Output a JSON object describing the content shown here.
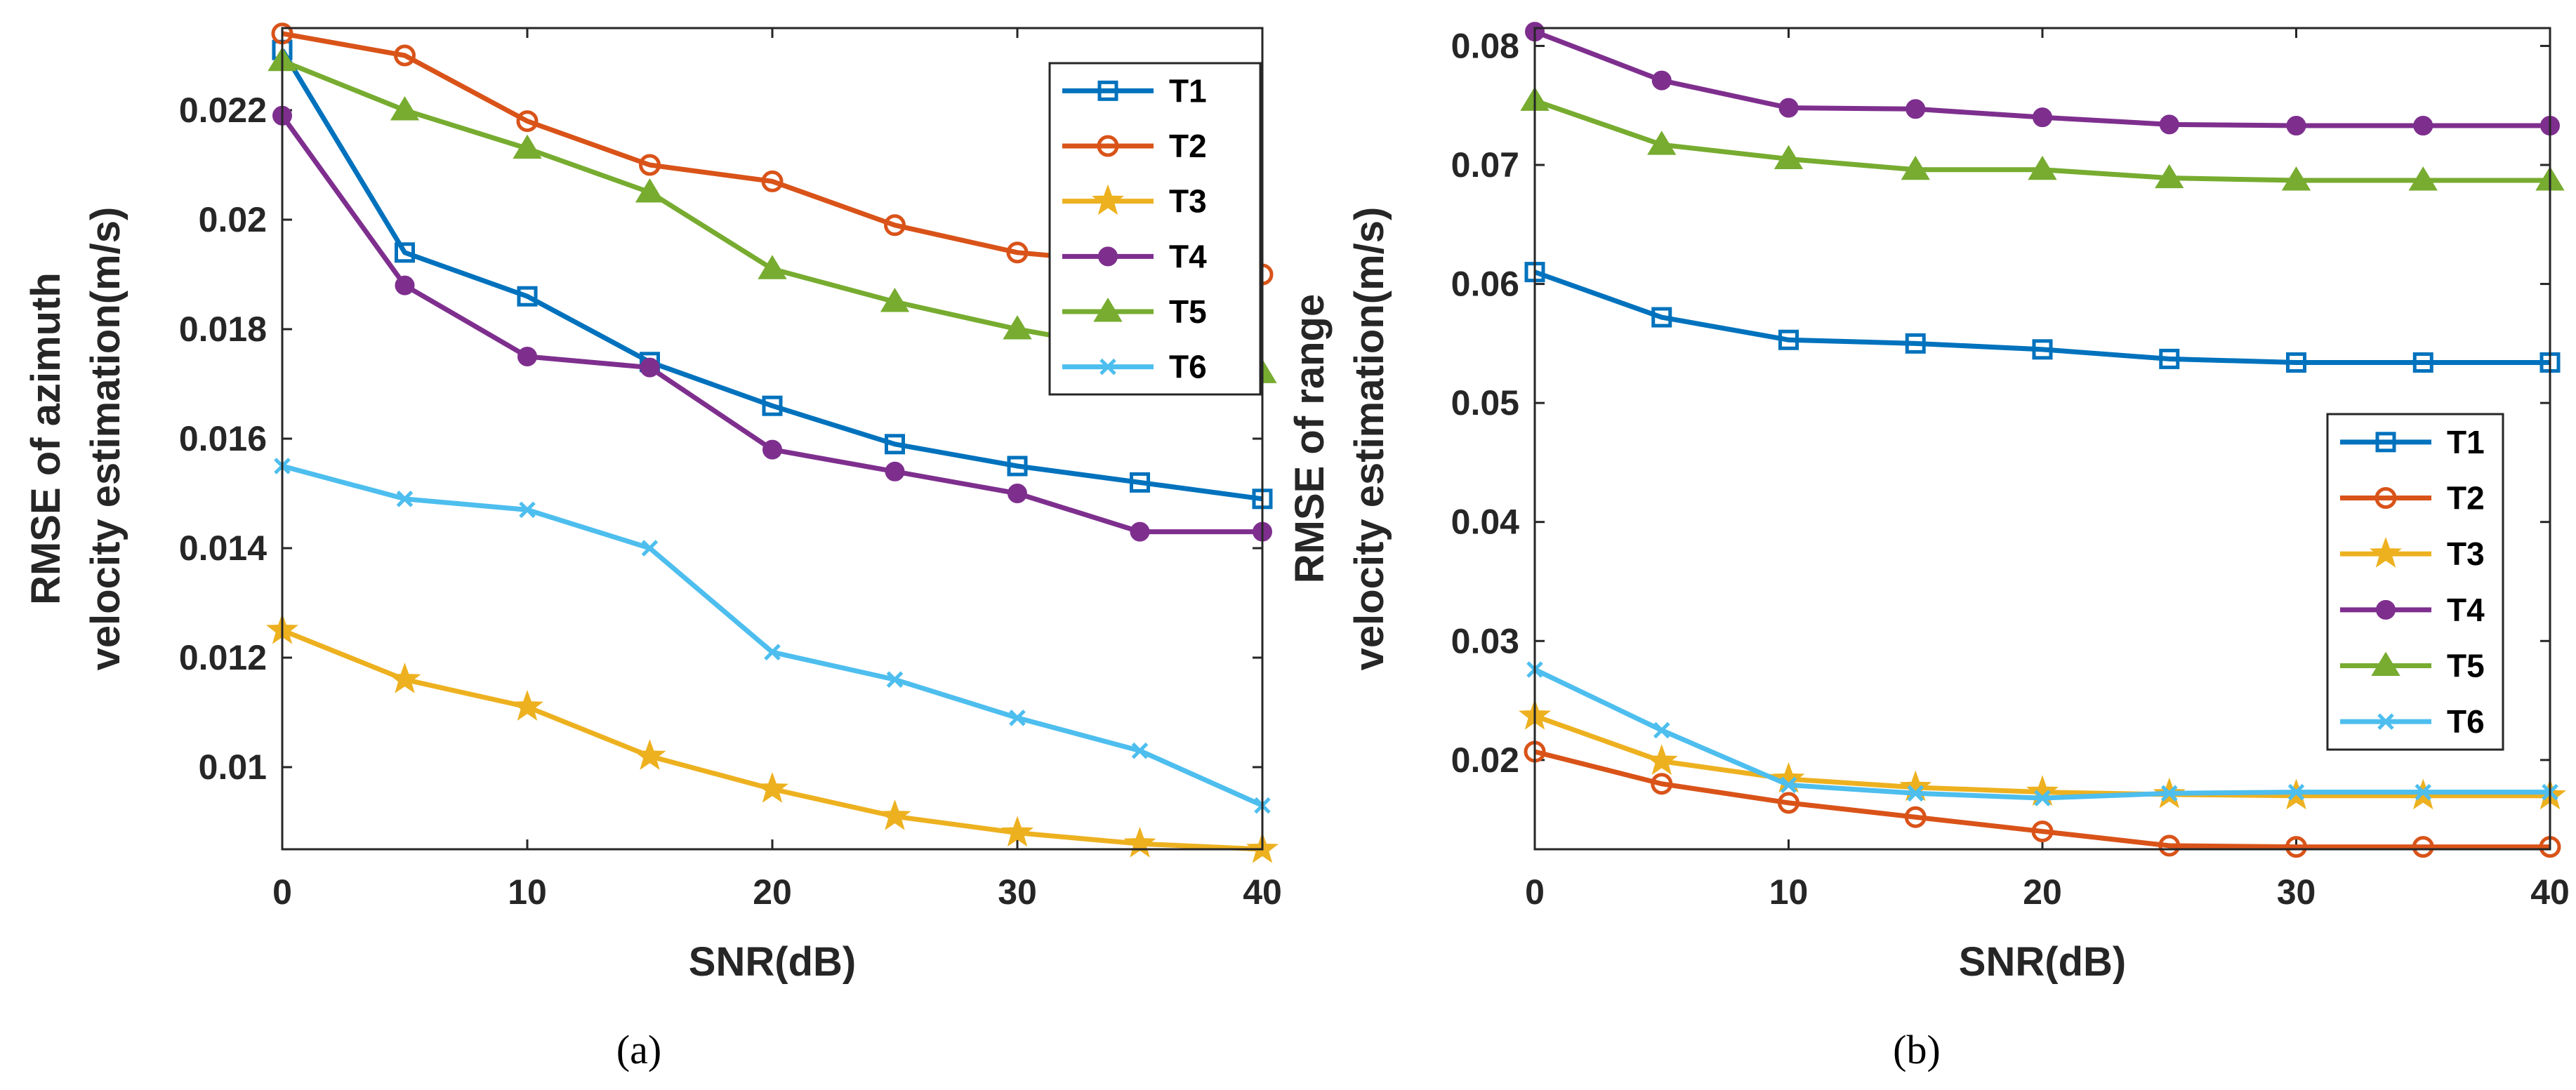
{
  "chart_data": [
    {
      "type": "line",
      "caption": "(a)",
      "xlabel": "SNR(dB)",
      "ylabel": [
        "RMSE of azimuth",
        "velocity estimation(m/s)"
      ],
      "xlim": [
        0,
        40
      ],
      "ylim": [
        0.0085,
        0.0235
      ],
      "xticks": [
        0,
        10,
        20,
        30,
        40
      ],
      "xtick_labels": [
        "0",
        "10",
        "20",
        "30",
        "40"
      ],
      "yticks": [
        0.01,
        0.012,
        0.014,
        0.016,
        0.018,
        0.02,
        0.022
      ],
      "ytick_labels": [
        "0.01",
        "0.012",
        "0.014",
        "0.016",
        "0.018",
        "0.02",
        "0.022"
      ],
      "legend_position": "top-right",
      "x": [
        0,
        5,
        10,
        15,
        20,
        25,
        30,
        35,
        40
      ],
      "series": [
        {
          "name": "T1",
          "color": "#0072BD",
          "marker": "square",
          "values": [
            0.0231,
            0.0194,
            0.0186,
            0.0174,
            0.0166,
            0.0159,
            0.0155,
            0.0152,
            0.0149
          ]
        },
        {
          "name": "T2",
          "color": "#D95319",
          "marker": "circle",
          "values": [
            0.0234,
            0.023,
            0.0218,
            0.021,
            0.0207,
            0.0199,
            0.0194,
            0.0192,
            0.019
          ]
        },
        {
          "name": "T3",
          "color": "#EDB120",
          "marker": "star",
          "values": [
            0.0125,
            0.0116,
            0.0111,
            0.0102,
            0.0096,
            0.0091,
            0.0088,
            0.0086,
            0.0085
          ]
        },
        {
          "name": "T4",
          "color": "#7E2F8E",
          "marker": "dot",
          "values": [
            0.0219,
            0.0188,
            0.0175,
            0.0173,
            0.0158,
            0.0154,
            0.015,
            0.0143,
            0.0143
          ]
        },
        {
          "name": "T5",
          "color": "#77AC30",
          "marker": "triangle",
          "values": [
            0.0229,
            0.022,
            0.0213,
            0.0205,
            0.0191,
            0.0185,
            0.018,
            0.0176,
            0.0172
          ]
        },
        {
          "name": "T6",
          "color": "#4DBEEE",
          "marker": "x",
          "values": [
            0.0155,
            0.0149,
            0.0147,
            0.014,
            0.0121,
            0.0116,
            0.0109,
            0.0103,
            0.0093
          ]
        }
      ]
    },
    {
      "type": "line",
      "caption": "(b)",
      "xlabel": "SNR(dB)",
      "ylabel": [
        "RMSE of range",
        "velocity estimation(m/s)"
      ],
      "xlim": [
        0,
        40
      ],
      "ylim": [
        0.0125,
        0.0815
      ],
      "xticks": [
        0,
        10,
        20,
        30,
        40
      ],
      "xtick_labels": [
        "0",
        "10",
        "20",
        "30",
        "40"
      ],
      "yticks": [
        0.02,
        0.03,
        0.04,
        0.05,
        0.06,
        0.07,
        0.08
      ],
      "ytick_labels": [
        "0.02",
        "0.03",
        "0.04",
        "0.05",
        "0.06",
        "0.07",
        "0.08"
      ],
      "legend_position": "right",
      "x": [
        0,
        5,
        10,
        15,
        20,
        25,
        30,
        35,
        40
      ],
      "series": [
        {
          "name": "T1",
          "color": "#0072BD",
          "marker": "square",
          "values": [
            0.061,
            0.0572,
            0.0553,
            0.055,
            0.0545,
            0.0537,
            0.0534,
            0.0534,
            0.0534
          ]
        },
        {
          "name": "T2",
          "color": "#D95319",
          "marker": "circle",
          "values": [
            0.0207,
            0.018,
            0.0164,
            0.0152,
            0.014,
            0.0128,
            0.0127,
            0.0127,
            0.0127
          ]
        },
        {
          "name": "T3",
          "color": "#EDB120",
          "marker": "star",
          "values": [
            0.0237,
            0.0199,
            0.0184,
            0.0177,
            0.0173,
            0.0171,
            0.017,
            0.017,
            0.017
          ]
        },
        {
          "name": "T4",
          "color": "#7E2F8E",
          "marker": "dot",
          "values": [
            0.0812,
            0.0771,
            0.0748,
            0.0747,
            0.074,
            0.0734,
            0.0733,
            0.0733,
            0.0733
          ]
        },
        {
          "name": "T5",
          "color": "#77AC30",
          "marker": "triangle",
          "values": [
            0.0754,
            0.0717,
            0.0705,
            0.0696,
            0.0696,
            0.0689,
            0.0687,
            0.0687,
            0.0687
          ]
        },
        {
          "name": "T6",
          "color": "#4DBEEE",
          "marker": "x",
          "values": [
            0.0276,
            0.0225,
            0.0179,
            0.0172,
            0.0168,
            0.0172,
            0.0173,
            0.0173,
            0.0173
          ]
        }
      ]
    }
  ]
}
